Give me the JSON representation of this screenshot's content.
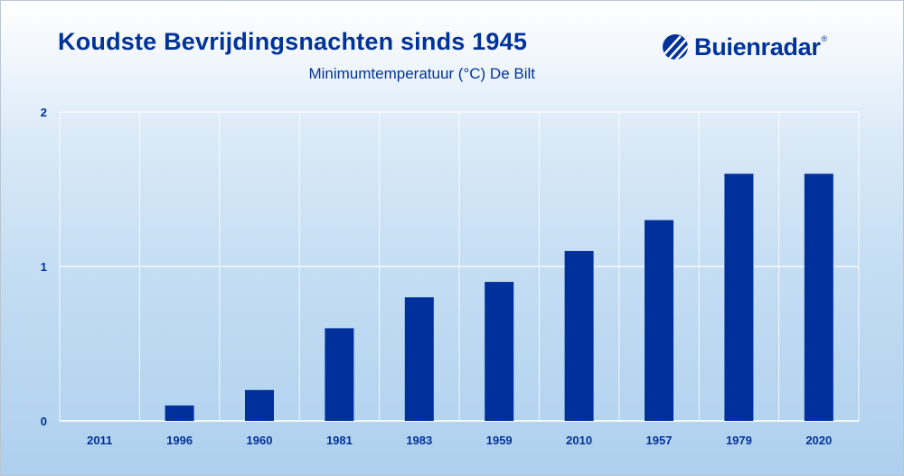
{
  "header": {
    "title": "Koudste Bevrijdingsnachten sinds 1945",
    "subtitle": "Minimumtemperatuur (°C) De Bilt"
  },
  "logo": {
    "brand": "Buienradar",
    "registered_mark": "®",
    "icon": "buienradar-logo-icon",
    "color": "#00339a"
  },
  "chart_data": {
    "type": "bar",
    "title": "Koudste Bevrijdingsnachten sinds 1945",
    "subtitle": "Minimumtemperatuur (°C) De Bilt",
    "xlabel": "",
    "ylabel": "",
    "categories": [
      "2011",
      "1996",
      "1960",
      "1981",
      "1983",
      "1959",
      "2010",
      "1957",
      "1979",
      "2020"
    ],
    "values": [
      0.0,
      0.1,
      0.2,
      0.6,
      0.8,
      0.9,
      1.1,
      1.3,
      1.6,
      1.6
    ],
    "ylim": [
      0,
      2
    ],
    "yticks": [
      0,
      1,
      2
    ],
    "ytick_labels": [
      "0",
      "1",
      "2"
    ],
    "grid": true,
    "legend": "none",
    "bar_color": "#00309b",
    "text_color": "#00339a"
  }
}
